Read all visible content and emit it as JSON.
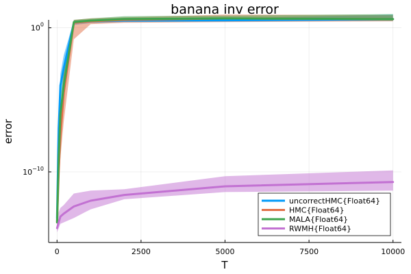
{
  "chart_data": {
    "type": "line",
    "title": "banana inv error",
    "xlabel": "T",
    "ylabel": "error",
    "x_ticks": [
      0,
      2500,
      5000,
      7500,
      10000
    ],
    "x_tick_labels": [
      "0",
      "2500",
      "5000",
      "7500",
      "10000"
    ],
    "y_scale": "log10",
    "y_tick_exponents": [
      0,
      -10
    ],
    "y_tick_labels": [
      {
        "base": "10",
        "exp": "0"
      },
      {
        "base": "10",
        "exp": "−10"
      }
    ],
    "xlim": [
      -250,
      10250
    ],
    "ylim_log10": [
      -14.9,
      0.55
    ],
    "grid": true,
    "legend": "bottom-right",
    "series": [
      {
        "name": "uncorrectHMC{Float64}",
        "color": "#009af9",
        "x": [
          1,
          50,
          100,
          200,
          500,
          1000,
          2000,
          5000,
          10000
        ],
        "log10_y": [
          -13.2,
          -7.0,
          -4.0,
          -2.8,
          0.35,
          0.45,
          0.5,
          0.52,
          0.6
        ],
        "log10_band_low": [
          -13.5,
          -8.2,
          -5.0,
          -3.5,
          0.2,
          0.32,
          0.4,
          0.42,
          0.48
        ],
        "log10_band_high": [
          -12.8,
          -6.0,
          -3.2,
          -1.9,
          0.5,
          0.56,
          0.6,
          0.65,
          0.92
        ]
      },
      {
        "name": "HMC{Float64}",
        "color": "#e26f46",
        "x": [
          1,
          50,
          100,
          200,
          500,
          1000,
          2000,
          5000,
          10000
        ],
        "log10_y": [
          -13.5,
          -10.0,
          -7.5,
          -4.5,
          0.35,
          0.45,
          0.55,
          0.65,
          0.6
        ],
        "log10_band_low": [
          -13.8,
          -11.0,
          -9.0,
          -6.5,
          -0.8,
          0.25,
          0.35,
          0.4,
          0.45
        ],
        "log10_band_high": [
          -13.2,
          -9.0,
          -6.0,
          -3.0,
          0.55,
          0.65,
          0.72,
          0.92,
          0.88
        ]
      },
      {
        "name": "MALA{Float64}",
        "color": "#3da44d",
        "x": [
          1,
          50,
          100,
          200,
          500,
          1000,
          2000,
          5000,
          10000
        ],
        "log10_y": [
          -13.5,
          -9.0,
          -6.0,
          -4.0,
          0.4,
          0.5,
          0.6,
          0.65,
          0.6
        ],
        "log10_band_low": [
          -13.8,
          -10.0,
          -7.0,
          -5.0,
          0.3,
          0.4,
          0.5,
          0.52,
          0.5
        ],
        "log10_band_high": [
          -13.2,
          -8.0,
          -5.0,
          -3.0,
          0.55,
          0.65,
          0.8,
          0.85,
          0.95
        ]
      },
      {
        "name": "RWMH{Float64}",
        "color": "#c271d2",
        "x": [
          1,
          50,
          100,
          200,
          500,
          1000,
          2000,
          5000,
          10000
        ],
        "log10_y": [
          -13.9,
          -13.5,
          -13.1,
          -12.9,
          -12.4,
          -12.0,
          -11.6,
          -11.0,
          -10.7
        ],
        "log10_band_low": [
          -14.2,
          -13.9,
          -13.6,
          -13.5,
          -13.2,
          -12.6,
          -11.9,
          -11.4,
          -11.3
        ],
        "log10_band_high": [
          -13.3,
          -12.8,
          -12.5,
          -12.3,
          -11.5,
          -11.3,
          -11.2,
          -10.3,
          -9.9
        ]
      }
    ]
  }
}
